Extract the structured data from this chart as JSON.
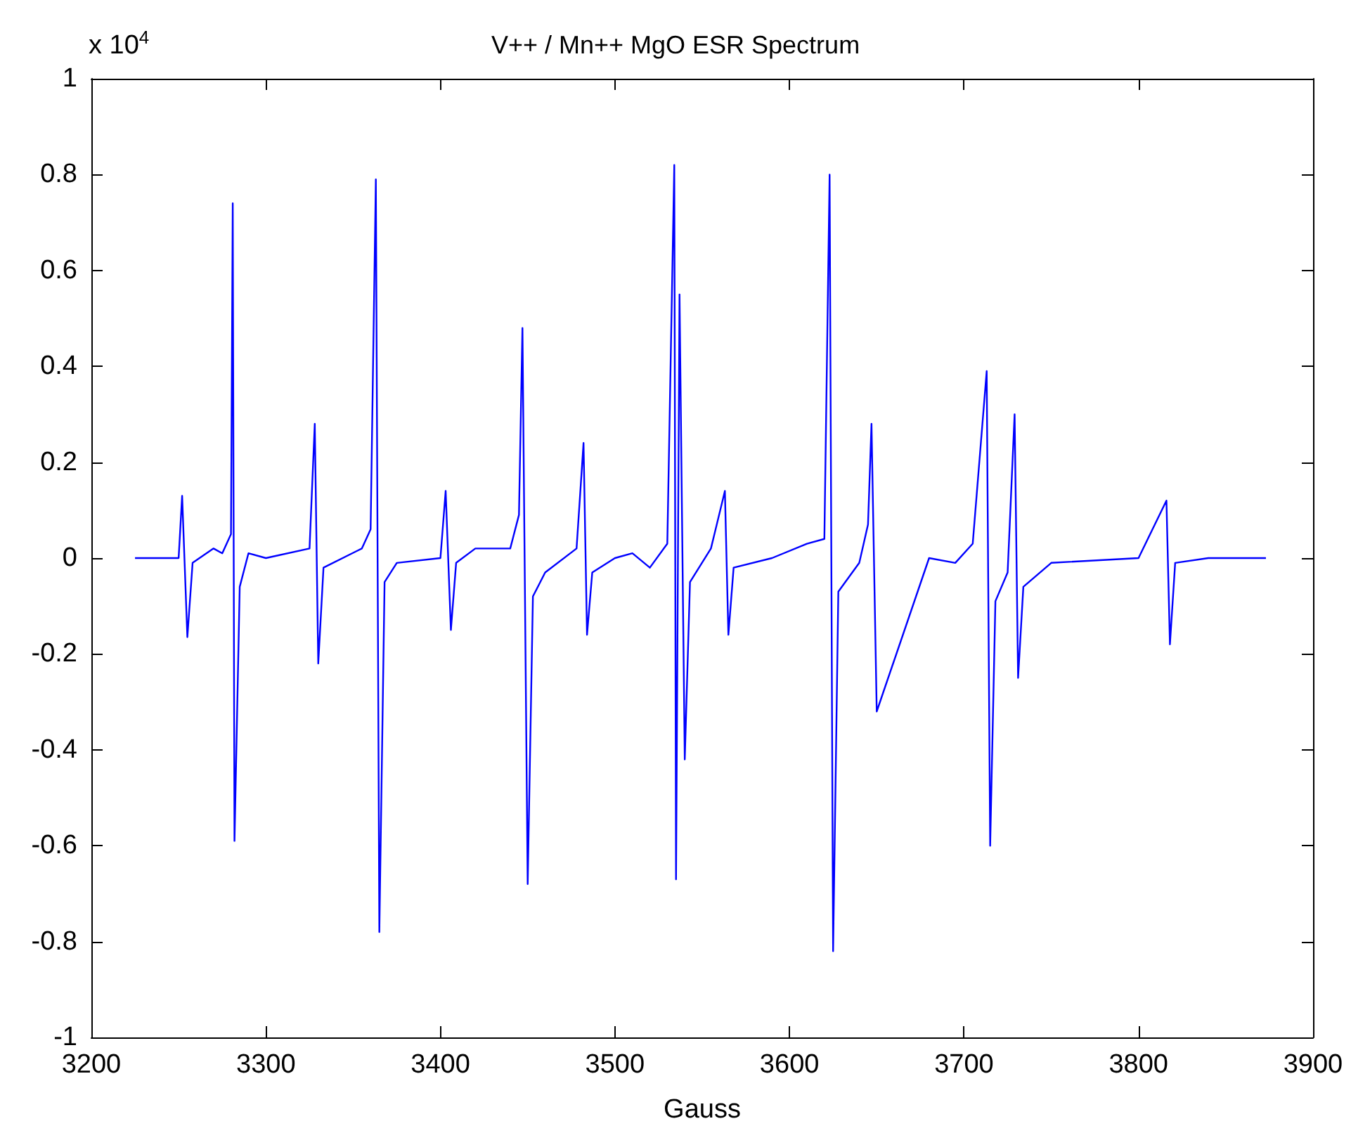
{
  "chart_data": {
    "type": "line",
    "title": "V++ / Mn++ MgO ESR Spectrum",
    "xlabel": "Gauss",
    "annotations": [
      "x 10$^{4}$"
    ],
    "x": [
      3225,
      3250,
      3252,
      3255,
      3258,
      3270,
      3275,
      3280,
      3281,
      3282,
      3285,
      3290,
      3300,
      3325,
      3328,
      3330,
      3333,
      3355,
      3360,
      3363,
      3365,
      3368,
      3375,
      3400,
      3403,
      3406,
      3409,
      3420,
      3440,
      3445,
      3447,
      3450,
      3453,
      3460,
      3478,
      3482,
      3484,
      3487,
      3500,
      3510,
      3520,
      3530,
      3534,
      3535,
      3537,
      3540,
      3543,
      3555,
      3563,
      3565,
      3568,
      3590,
      3610,
      3620,
      3623,
      3625,
      3628,
      3640,
      3645,
      3647,
      3650,
      3680,
      3695,
      3705,
      3713,
      3715,
      3718,
      3725,
      3729,
      3731,
      3734,
      3750,
      3800,
      3816,
      3818,
      3821,
      3840,
      3873
    ],
    "series": [
      {
        "color": "#0000ff",
        "values": [
          0,
          0,
          0.13,
          -0.165,
          -0.01,
          0.02,
          0.01,
          0.05,
          0.74,
          -0.59,
          -0.06,
          0.01,
          0,
          0.02,
          0.28,
          -0.22,
          -0.02,
          0.02,
          0.06,
          0.79,
          -0.78,
          -0.05,
          -0.01,
          0,
          0.14,
          -0.15,
          -0.01,
          0.02,
          0.02,
          0.09,
          0.48,
          -0.68,
          -0.08,
          -0.03,
          0.02,
          0.24,
          -0.16,
          -0.03,
          0,
          0.01,
          -0.02,
          0.03,
          0.82,
          -0.67,
          0.55,
          -0.42,
          -0.05,
          0.02,
          0.14,
          -0.16,
          -0.02,
          0,
          0.03,
          0.04,
          0.8,
          -0.82,
          -0.07,
          -0.01,
          0.07,
          0.28,
          -0.32,
          0,
          -0.01,
          0.03,
          0.39,
          -0.6,
          -0.09,
          -0.03,
          0.3,
          -0.25,
          -0.06,
          -0.01,
          0,
          0.12,
          -0.18,
          -0.01,
          0,
          0
        ]
      }
    ],
    "xlim": [
      3200,
      3900
    ],
    "xticks": [
      3200,
      3300,
      3400,
      3500,
      3600,
      3700,
      3800,
      3900
    ],
    "ylim": [
      -1,
      1
    ],
    "yticks": [
      -1,
      -0.8,
      -0.6,
      -0.4,
      -0.2,
      0,
      0.2,
      0.4,
      0.6,
      0.8,
      1
    ],
    "grid": false,
    "marker": "none",
    "line_style": "solid"
  }
}
